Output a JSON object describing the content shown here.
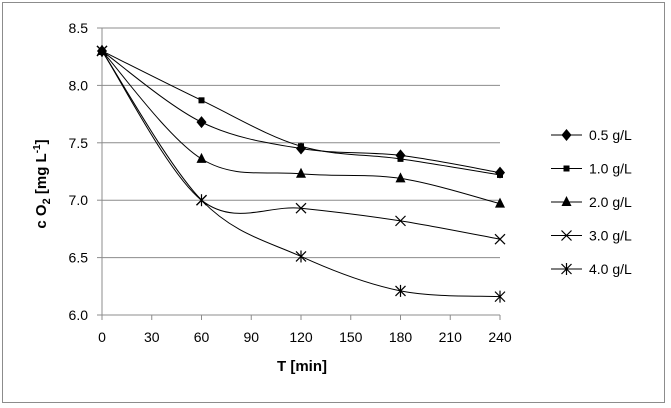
{
  "chart_data": {
    "type": "line",
    "xlabel": "T [min]",
    "ylabel_parts": {
      "c": "c O",
      "sub": "2",
      "units": " [mg L",
      "sup": "-1",
      "close": "]"
    },
    "x": [
      0,
      60,
      120,
      180,
      240
    ],
    "xticks": [
      "0",
      "30",
      "60",
      "90",
      "120",
      "150",
      "180",
      "210",
      "240"
    ],
    "xtick_values": [
      0,
      30,
      60,
      90,
      120,
      150,
      180,
      210,
      240
    ],
    "yticks": [
      "6.0",
      "6.5",
      "7.0",
      "7.5",
      "8.0",
      "8.5"
    ],
    "ytick_values": [
      6.0,
      6.5,
      7.0,
      7.5,
      8.0,
      8.5
    ],
    "xlim": [
      0,
      240
    ],
    "ylim": [
      6.0,
      8.5
    ],
    "grid": "horizontal",
    "legend_position": "right",
    "series": [
      {
        "name": "0.5 g/L",
        "marker": "diamond",
        "values": [
          8.3,
          7.68,
          7.45,
          7.39,
          7.24
        ]
      },
      {
        "name": "1.0 g/L",
        "marker": "square",
        "values": [
          8.3,
          7.87,
          7.47,
          7.36,
          7.22
        ]
      },
      {
        "name": "2.0 g/L",
        "marker": "triangle",
        "values": [
          8.3,
          7.36,
          7.23,
          7.19,
          6.97
        ]
      },
      {
        "name": "3.0 g/L",
        "marker": "x",
        "values": [
          8.3,
          7.0,
          6.93,
          6.82,
          6.66
        ]
      },
      {
        "name": "4.0 g/L",
        "marker": "star",
        "values": [
          8.3,
          7.0,
          6.51,
          6.21,
          6.16
        ]
      }
    ]
  }
}
